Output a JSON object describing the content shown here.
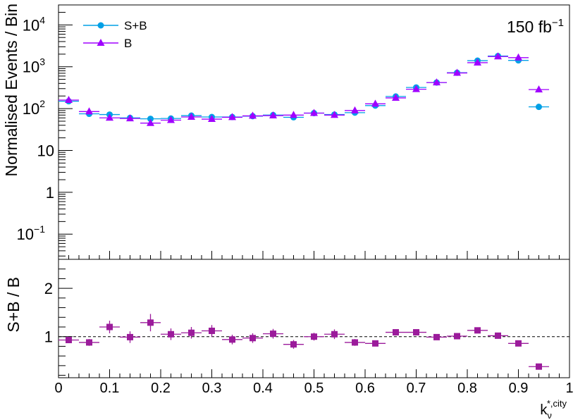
{
  "chart_data": [
    {
      "type": "scatter",
      "ylabel": "Normalised Events / Bin",
      "yscale": "log",
      "ylim": [
        0.025,
        30000
      ],
      "xlim": [
        0,
        1
      ],
      "lumi_label": "150 fb",
      "lumi_exp": "−1",
      "ytick_labels": [
        {
          "value": 0.1,
          "base": "10",
          "exp": "−1"
        },
        {
          "value": 1,
          "base": "1",
          "exp": ""
        },
        {
          "value": 10,
          "base": "10",
          "exp": ""
        },
        {
          "value": 100,
          "base": "10",
          "exp": "2"
        },
        {
          "value": 1000,
          "base": "10",
          "exp": "3"
        },
        {
          "value": 10000,
          "base": "10",
          "exp": "4"
        }
      ],
      "legend_position": "top-left",
      "x": [
        0.02,
        0.06,
        0.1,
        0.14,
        0.18,
        0.22,
        0.26,
        0.3,
        0.34,
        0.38,
        0.42,
        0.46,
        0.5,
        0.54,
        0.58,
        0.62,
        0.66,
        0.7,
        0.74,
        0.78,
        0.82,
        0.86,
        0.9,
        0.94
      ],
      "series": [
        {
          "name": "S+B",
          "color": "#00a0e6",
          "marker": "circle",
          "values": [
            150,
            75,
            72,
            60,
            57,
            58,
            68,
            63,
            63,
            66,
            70,
            62,
            78,
            72,
            80,
            118,
            195,
            320,
            420,
            720,
            1400,
            1800,
            1420,
            110
          ]
        },
        {
          "name": "B",
          "color": "#a000ff",
          "marker": "triangle",
          "values": [
            160,
            85,
            60,
            58,
            45,
            53,
            63,
            56,
            62,
            67,
            68,
            70,
            78,
            70,
            90,
            130,
            180,
            290,
            420,
            710,
            1250,
            1750,
            1650,
            285
          ]
        }
      ]
    },
    {
      "type": "scatter",
      "ylabel": "S+B / B",
      "xlabel_base": "k",
      "xlabel_sub": "ν",
      "xlabel_sup": "*,city",
      "ylim": [
        0.15,
        2.6
      ],
      "xlim": [
        0,
        1
      ],
      "ytick_labels": [
        1,
        2
      ],
      "xtick_labels": [
        "0",
        "0.1",
        "0.2",
        "0.3",
        "0.4",
        "0.5",
        "0.6",
        "0.7",
        "0.8",
        "0.9",
        "1"
      ],
      "reference_line": 1,
      "color": "#9b1b9b",
      "marker": "square",
      "x": [
        0.02,
        0.06,
        0.1,
        0.14,
        0.18,
        0.22,
        0.26,
        0.3,
        0.34,
        0.38,
        0.42,
        0.46,
        0.5,
        0.54,
        0.58,
        0.62,
        0.66,
        0.7,
        0.74,
        0.78,
        0.82,
        0.86,
        0.9,
        0.94
      ],
      "values": [
        0.93,
        0.88,
        1.2,
        0.99,
        1.29,
        1.05,
        1.08,
        1.12,
        0.94,
        0.97,
        1.06,
        0.84,
        1.0,
        1.05,
        0.88,
        0.86,
        1.09,
        1.09,
        0.99,
        1.01,
        1.13,
        1.02,
        0.86,
        0.38
      ],
      "errors": [
        0.06,
        0.07,
        0.13,
        0.12,
        0.18,
        0.12,
        0.12,
        0.12,
        0.1,
        0.1,
        0.1,
        0.09,
        0.08,
        0.1,
        0.07,
        0.06,
        0.05,
        0.05,
        0.04,
        0.03,
        0.03,
        0.03,
        0.03,
        0.03
      ]
    }
  ]
}
